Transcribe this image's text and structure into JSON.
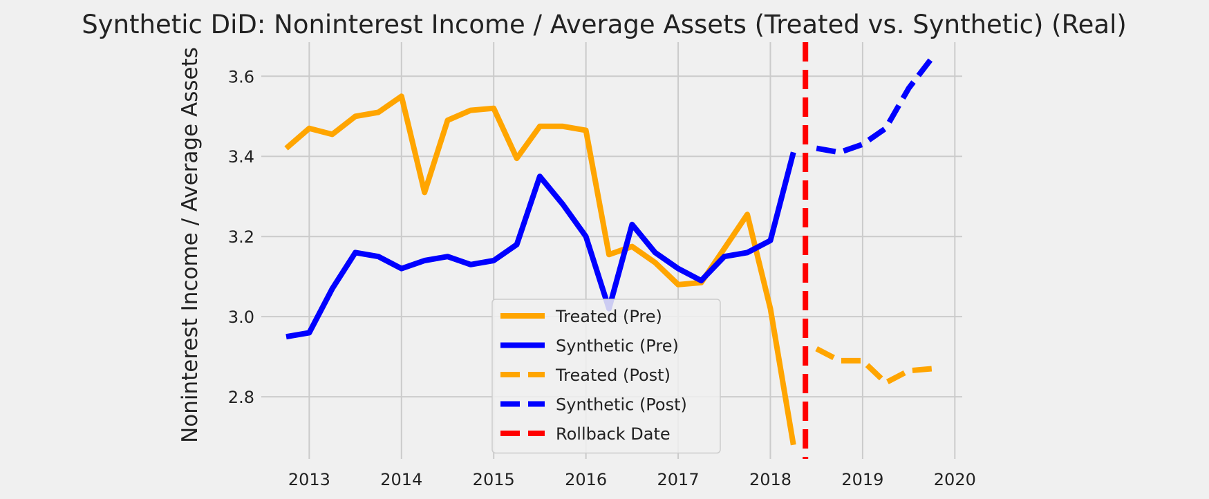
{
  "chart_data": {
    "type": "line",
    "title": "Synthetic DiD: Noninterest Income / Average Assets (Treated vs. Synthetic) (Real)",
    "xlabel": "",
    "ylabel": "Noninterest Income / Average Assets",
    "xlim": [
      2012.48,
      2020.08
    ],
    "ylim": [
      2.645,
      3.685
    ],
    "x_ticks": [
      2013,
      2014,
      2015,
      2016,
      2017,
      2018,
      2019,
      2020
    ],
    "x_tick_labels": [
      "2013",
      "2014",
      "2015",
      "2016",
      "2017",
      "2018",
      "2019",
      "2020"
    ],
    "y_ticks": [
      2.8,
      3.0,
      3.2,
      3.4,
      3.6
    ],
    "y_tick_labels": [
      "2.8",
      "3.0",
      "3.2",
      "3.4",
      "3.6"
    ],
    "grid": true,
    "legend_position": "bottom-center",
    "series": [
      {
        "name": "Treated (Pre)",
        "color": "#ffa500",
        "style": "solid",
        "x": [
          2012.75,
          2013.0,
          2013.25,
          2013.5,
          2013.75,
          2014.0,
          2014.25,
          2014.5,
          2014.75,
          2015.0,
          2015.25,
          2015.5,
          2015.75,
          2016.0,
          2016.25,
          2016.5,
          2016.75,
          2017.0,
          2017.25,
          2017.5,
          2017.75,
          2018.0,
          2018.25
        ],
        "values": [
          3.42,
          3.47,
          3.455,
          3.5,
          3.51,
          3.55,
          3.31,
          3.49,
          3.515,
          3.52,
          3.395,
          3.475,
          3.475,
          3.465,
          3.155,
          3.175,
          3.135,
          3.08,
          3.085,
          3.17,
          3.255,
          3.02,
          2.68
        ]
      },
      {
        "name": "Synthetic (Pre)",
        "color": "#0000ff",
        "style": "solid",
        "x": [
          2012.75,
          2013.0,
          2013.25,
          2013.5,
          2013.75,
          2014.0,
          2014.25,
          2014.5,
          2014.75,
          2015.0,
          2015.25,
          2015.5,
          2015.75,
          2016.0,
          2016.25,
          2016.5,
          2016.75,
          2017.0,
          2017.25,
          2017.5,
          2017.75,
          2018.0,
          2018.25
        ],
        "values": [
          2.95,
          2.96,
          3.07,
          3.16,
          3.15,
          3.12,
          3.14,
          3.15,
          3.13,
          3.14,
          3.18,
          3.35,
          3.28,
          3.2,
          3.02,
          3.23,
          3.16,
          3.12,
          3.09,
          3.15,
          3.16,
          3.19,
          3.41
        ]
      },
      {
        "name": "Treated (Post)",
        "color": "#ffa500",
        "style": "dashed",
        "x": [
          2018.5,
          2018.75,
          2019.0,
          2019.25,
          2019.5,
          2019.75
        ],
        "values": [
          2.92,
          2.89,
          2.89,
          2.835,
          2.865,
          2.87
        ]
      },
      {
        "name": "Synthetic (Post)",
        "color": "#0000ff",
        "style": "dashed",
        "x": [
          2018.5,
          2018.75,
          2019.0,
          2019.25,
          2019.5,
          2019.75
        ],
        "values": [
          3.42,
          3.41,
          3.43,
          3.47,
          3.57,
          3.645
        ]
      }
    ],
    "vertical_line": {
      "name": "Rollback Date",
      "x": 2018.38,
      "color": "#ff0000",
      "style": "dashed"
    },
    "legend": [
      "Treated (Pre)",
      "Synthetic (Pre)",
      "Treated (Post)",
      "Synthetic (Post)",
      "Rollback Date"
    ]
  }
}
